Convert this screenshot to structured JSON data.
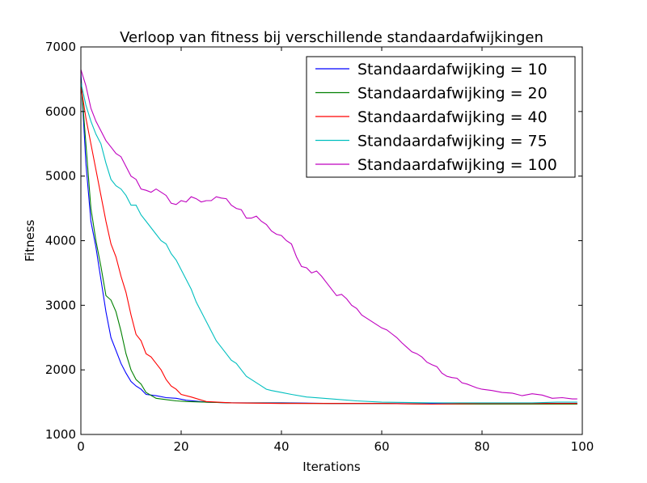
{
  "chart_data": {
    "type": "line",
    "title": "Verloop van fitness bij verschillende standaardafwijkingen",
    "xlabel": "Iterations",
    "ylabel": "Fitness",
    "xlim": [
      0,
      100
    ],
    "ylim": [
      1000,
      7000
    ],
    "xticks": [
      0,
      20,
      40,
      60,
      80,
      100
    ],
    "yticks": [
      1000,
      2000,
      3000,
      4000,
      5000,
      6000,
      7000
    ],
    "grid": false,
    "legend_position": "top-right",
    "series": [
      {
        "name": "Standaardafwijking = 10",
        "color": "#0000ff",
        "points": [
          [
            0,
            6600
          ],
          [
            1,
            5200
          ],
          [
            2,
            4300
          ],
          [
            3,
            3900
          ],
          [
            4,
            3400
          ],
          [
            5,
            2900
          ],
          [
            6,
            2500
          ],
          [
            7,
            2300
          ],
          [
            8,
            2100
          ],
          [
            9,
            1950
          ],
          [
            10,
            1820
          ],
          [
            11,
            1750
          ],
          [
            12,
            1700
          ],
          [
            13,
            1620
          ],
          [
            15,
            1600
          ],
          [
            17,
            1570
          ],
          [
            19,
            1560
          ],
          [
            21,
            1530
          ],
          [
            25,
            1500
          ],
          [
            30,
            1490
          ],
          [
            40,
            1490
          ],
          [
            50,
            1480
          ],
          [
            60,
            1480
          ],
          [
            70,
            1475
          ],
          [
            80,
            1470
          ],
          [
            90,
            1480
          ],
          [
            99,
            1480
          ]
        ]
      },
      {
        "name": "Standaardafwijking = 20",
        "color": "#008000",
        "points": [
          [
            0,
            6500
          ],
          [
            1,
            5500
          ],
          [
            2,
            4500
          ],
          [
            3,
            4000
          ],
          [
            4,
            3600
          ],
          [
            5,
            3150
          ],
          [
            6,
            3080
          ],
          [
            7,
            2900
          ],
          [
            8,
            2600
          ],
          [
            9,
            2250
          ],
          [
            10,
            2000
          ],
          [
            11,
            1850
          ],
          [
            12,
            1780
          ],
          [
            13,
            1650
          ],
          [
            15,
            1560
          ],
          [
            17,
            1540
          ],
          [
            19,
            1520
          ],
          [
            21,
            1510
          ],
          [
            25,
            1500
          ],
          [
            30,
            1490
          ],
          [
            40,
            1485
          ],
          [
            50,
            1480
          ],
          [
            60,
            1480
          ],
          [
            70,
            1470
          ],
          [
            80,
            1470
          ],
          [
            90,
            1470
          ],
          [
            99,
            1470
          ]
        ]
      },
      {
        "name": "Standaardafwijking = 40",
        "color": "#ff0000",
        "points": [
          [
            0,
            6400
          ],
          [
            1,
            5900
          ],
          [
            2,
            5500
          ],
          [
            3,
            5100
          ],
          [
            4,
            4700
          ],
          [
            5,
            4300
          ],
          [
            6,
            3950
          ],
          [
            7,
            3750
          ],
          [
            8,
            3450
          ],
          [
            9,
            3200
          ],
          [
            10,
            2850
          ],
          [
            11,
            2550
          ],
          [
            12,
            2450
          ],
          [
            13,
            2250
          ],
          [
            14,
            2200
          ],
          [
            15,
            2100
          ],
          [
            16,
            2000
          ],
          [
            17,
            1850
          ],
          [
            18,
            1750
          ],
          [
            19,
            1700
          ],
          [
            20,
            1620
          ],
          [
            22,
            1580
          ],
          [
            25,
            1510
          ],
          [
            30,
            1490
          ],
          [
            40,
            1480
          ],
          [
            50,
            1480
          ],
          [
            60,
            1480
          ],
          [
            70,
            1470
          ],
          [
            80,
            1480
          ],
          [
            90,
            1480
          ],
          [
            99,
            1480
          ]
        ]
      },
      {
        "name": "Standaardafwijking = 75",
        "color": "#00bfbf",
        "points": [
          [
            0,
            6450
          ],
          [
            1,
            6100
          ],
          [
            2,
            5850
          ],
          [
            3,
            5650
          ],
          [
            4,
            5500
          ],
          [
            5,
            5200
          ],
          [
            6,
            4950
          ],
          [
            7,
            4850
          ],
          [
            8,
            4800
          ],
          [
            9,
            4700
          ],
          [
            10,
            4550
          ],
          [
            11,
            4550
          ],
          [
            12,
            4400
          ],
          [
            13,
            4300
          ],
          [
            14,
            4200
          ],
          [
            15,
            4100
          ],
          [
            16,
            4000
          ],
          [
            17,
            3950
          ],
          [
            18,
            3800
          ],
          [
            19,
            3700
          ],
          [
            20,
            3550
          ],
          [
            21,
            3400
          ],
          [
            22,
            3250
          ],
          [
            23,
            3050
          ],
          [
            24,
            2900
          ],
          [
            25,
            2750
          ],
          [
            26,
            2600
          ],
          [
            27,
            2450
          ],
          [
            28,
            2350
          ],
          [
            29,
            2250
          ],
          [
            30,
            2150
          ],
          [
            31,
            2100
          ],
          [
            32,
            2000
          ],
          [
            33,
            1900
          ],
          [
            34,
            1850
          ],
          [
            35,
            1800
          ],
          [
            36,
            1750
          ],
          [
            37,
            1700
          ],
          [
            38,
            1680
          ],
          [
            40,
            1650
          ],
          [
            42,
            1620
          ],
          [
            45,
            1580
          ],
          [
            50,
            1550
          ],
          [
            55,
            1520
          ],
          [
            60,
            1500
          ],
          [
            70,
            1490
          ],
          [
            80,
            1490
          ],
          [
            90,
            1490
          ],
          [
            95,
            1500
          ],
          [
            99,
            1500
          ]
        ]
      },
      {
        "name": "Standaardafwijking = 100",
        "color": "#bf00bf",
        "points": [
          [
            0,
            6650
          ],
          [
            1,
            6400
          ],
          [
            2,
            6050
          ],
          [
            3,
            5850
          ],
          [
            4,
            5700
          ],
          [
            5,
            5550
          ],
          [
            6,
            5450
          ],
          [
            7,
            5350
          ],
          [
            8,
            5300
          ],
          [
            9,
            5150
          ],
          [
            10,
            5000
          ],
          [
            11,
            4950
          ],
          [
            12,
            4800
          ],
          [
            13,
            4780
          ],
          [
            14,
            4750
          ],
          [
            15,
            4800
          ],
          [
            16,
            4750
          ],
          [
            17,
            4700
          ],
          [
            18,
            4580
          ],
          [
            19,
            4560
          ],
          [
            20,
            4620
          ],
          [
            21,
            4600
          ],
          [
            22,
            4680
          ],
          [
            23,
            4650
          ],
          [
            24,
            4600
          ],
          [
            25,
            4620
          ],
          [
            26,
            4620
          ],
          [
            27,
            4680
          ],
          [
            28,
            4660
          ],
          [
            29,
            4650
          ],
          [
            30,
            4550
          ],
          [
            31,
            4500
          ],
          [
            32,
            4480
          ],
          [
            33,
            4350
          ],
          [
            34,
            4350
          ],
          [
            35,
            4380
          ],
          [
            36,
            4300
          ],
          [
            37,
            4250
          ],
          [
            38,
            4150
          ],
          [
            39,
            4100
          ],
          [
            40,
            4080
          ],
          [
            41,
            4000
          ],
          [
            42,
            3950
          ],
          [
            43,
            3750
          ],
          [
            44,
            3600
          ],
          [
            45,
            3580
          ],
          [
            46,
            3500
          ],
          [
            47,
            3530
          ],
          [
            48,
            3450
          ],
          [
            49,
            3350
          ],
          [
            50,
            3250
          ],
          [
            51,
            3150
          ],
          [
            52,
            3170
          ],
          [
            53,
            3100
          ],
          [
            54,
            3000
          ],
          [
            55,
            2950
          ],
          [
            56,
            2850
          ],
          [
            57,
            2800
          ],
          [
            58,
            2750
          ],
          [
            59,
            2700
          ],
          [
            60,
            2650
          ],
          [
            61,
            2620
          ],
          [
            62,
            2560
          ],
          [
            63,
            2500
          ],
          [
            64,
            2420
          ],
          [
            65,
            2350
          ],
          [
            66,
            2280
          ],
          [
            67,
            2250
          ],
          [
            68,
            2200
          ],
          [
            69,
            2120
          ],
          [
            70,
            2080
          ],
          [
            71,
            2050
          ],
          [
            72,
            1950
          ],
          [
            73,
            1900
          ],
          [
            74,
            1880
          ],
          [
            75,
            1870
          ],
          [
            76,
            1800
          ],
          [
            77,
            1780
          ],
          [
            78,
            1750
          ],
          [
            79,
            1720
          ],
          [
            80,
            1700
          ],
          [
            82,
            1680
          ],
          [
            84,
            1650
          ],
          [
            86,
            1640
          ],
          [
            88,
            1600
          ],
          [
            90,
            1630
          ],
          [
            92,
            1610
          ],
          [
            94,
            1560
          ],
          [
            96,
            1570
          ],
          [
            98,
            1550
          ],
          [
            99,
            1550
          ]
        ]
      }
    ]
  }
}
